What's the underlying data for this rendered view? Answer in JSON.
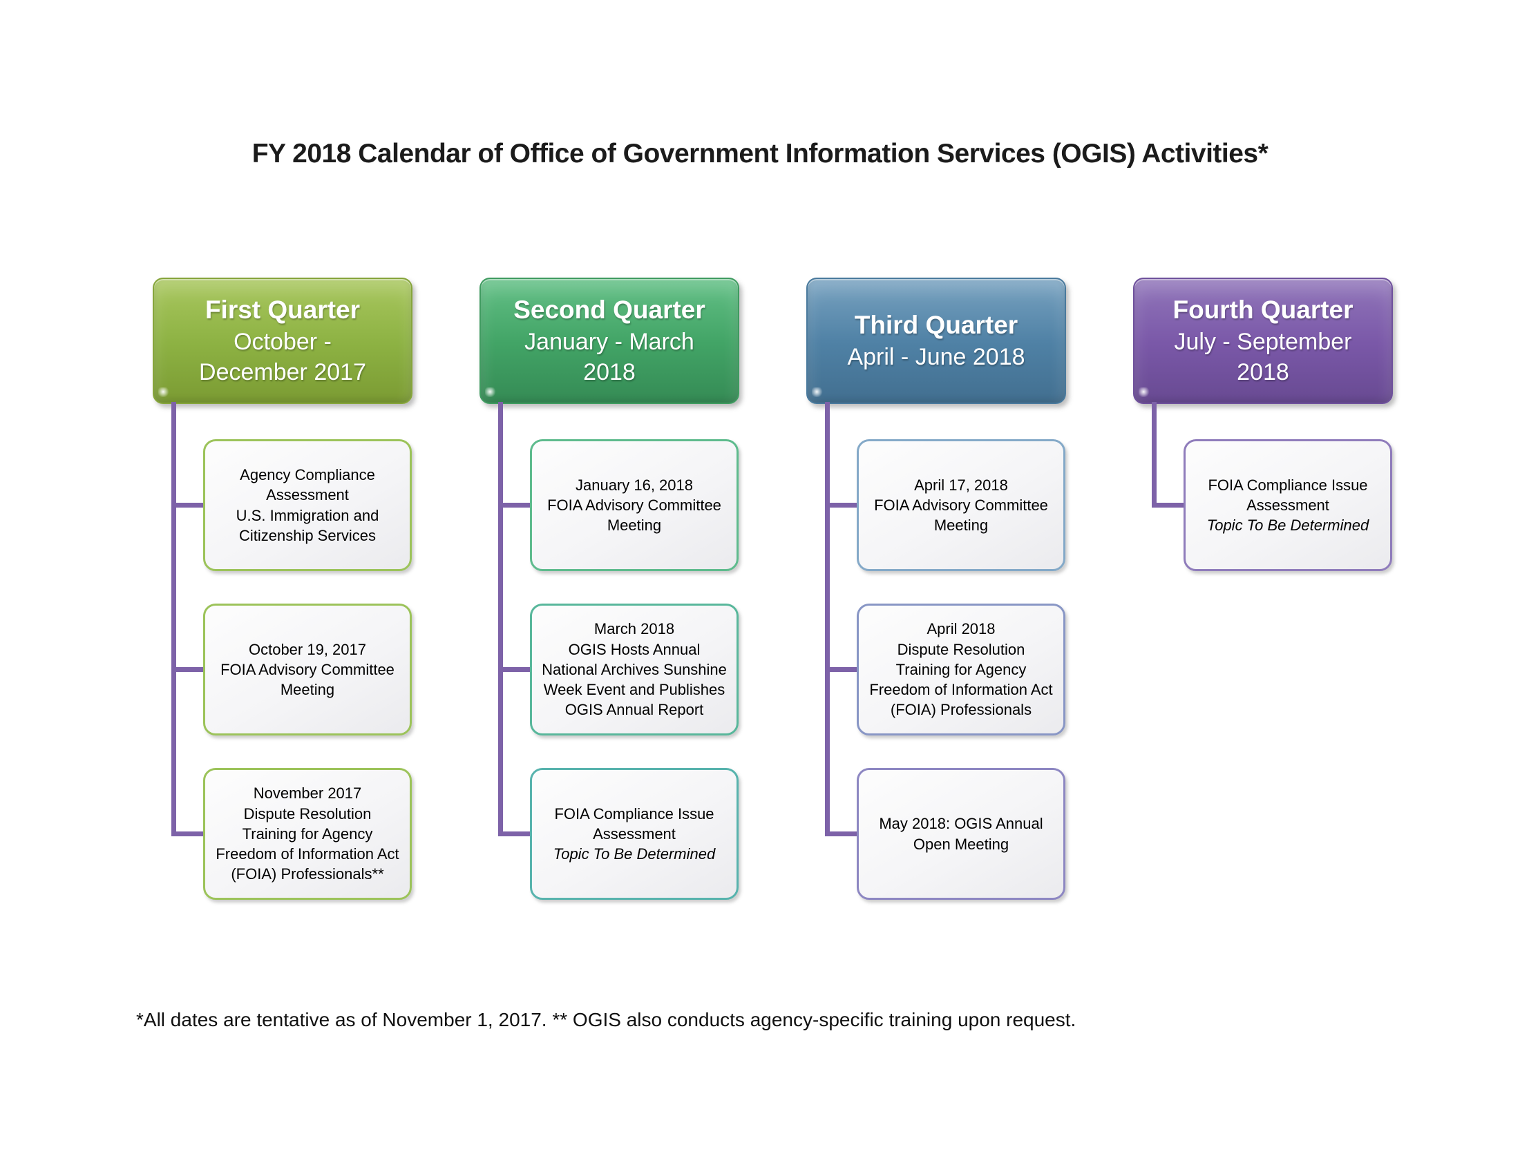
{
  "title": "FY 2018 Calendar of Office of Government Information Services (OGIS) Activities*",
  "footnote": "*All dates are tentative as of November 1, 2017. ** OGIS also conducts agency-specific training upon request.",
  "connector_color": "#7d62a8",
  "quarters": [
    {
      "name": "First Quarter",
      "range": "October -\nDecember 2017",
      "colors": {
        "top": "#a9c75f",
        "mid": "#8db243",
        "bottom": "#7b9b33",
        "border": "#86a53b"
      },
      "items": [
        {
          "line1": "Agency Compliance Assessment",
          "line2": "U.S. Immigration and Citizenship Services",
          "border_color": "#9cc35a"
        },
        {
          "line1": "October 19, 2017",
          "line2": "FOIA Advisory Committee Meeting",
          "border_color": "#9cc35a"
        },
        {
          "line1": "November 2017",
          "line2": "Dispute Resolution Training for Agency Freedom of Information Act (FOIA) Professionals**",
          "border_color": "#9cc35a"
        }
      ]
    },
    {
      "name": "Second Quarter",
      "range": "January - March\n2018",
      "colors": {
        "top": "#63c086",
        "mid": "#42a466",
        "bottom": "#358b55",
        "border": "#3f9b60"
      },
      "items": [
        {
          "line1": "January 16, 2018",
          "line2": "FOIA Advisory Committee Meeting",
          "border_color": "#5ebb8d"
        },
        {
          "line1": "March 2018",
          "line2": "OGIS Hosts Annual National Archives Sunshine Week Event and Publishes OGIS Annual Report",
          "border_color": "#58b79b"
        },
        {
          "line1": "FOIA Compliance Issue Assessment",
          "note": "Topic To Be Determined",
          "border_color": "#57b3ad"
        }
      ]
    },
    {
      "name": "Third Quarter",
      "range": "April - June 2018",
      "colors": {
        "top": "#78a2c0",
        "mid": "#4f81a5",
        "bottom": "#426f90",
        "border": "#4a7a9d"
      },
      "items": [
        {
          "line1": "April 17, 2018",
          "line2": "FOIA Advisory Committee Meeting",
          "border_color": "#84a9c8"
        },
        {
          "line1": "April 2018",
          "line2": "Dispute Resolution Training for Agency Freedom of Information Act (FOIA) Professionals",
          "border_color": "#8896c5"
        },
        {
          "line1": "May 2018: OGIS Annual Open Meeting",
          "border_color": "#8d87c2"
        }
      ]
    },
    {
      "name": "Fourth Quarter",
      "range": "July - September\n2018",
      "colors": {
        "top": "#9176ba",
        "mid": "#7a58a8",
        "bottom": "#684a92",
        "border": "#6f519c"
      },
      "items": [
        {
          "line1": "FOIA Compliance Issue Assessment",
          "note": "Topic To Be Determined",
          "border_color": "#8f7cbb"
        }
      ]
    }
  ]
}
